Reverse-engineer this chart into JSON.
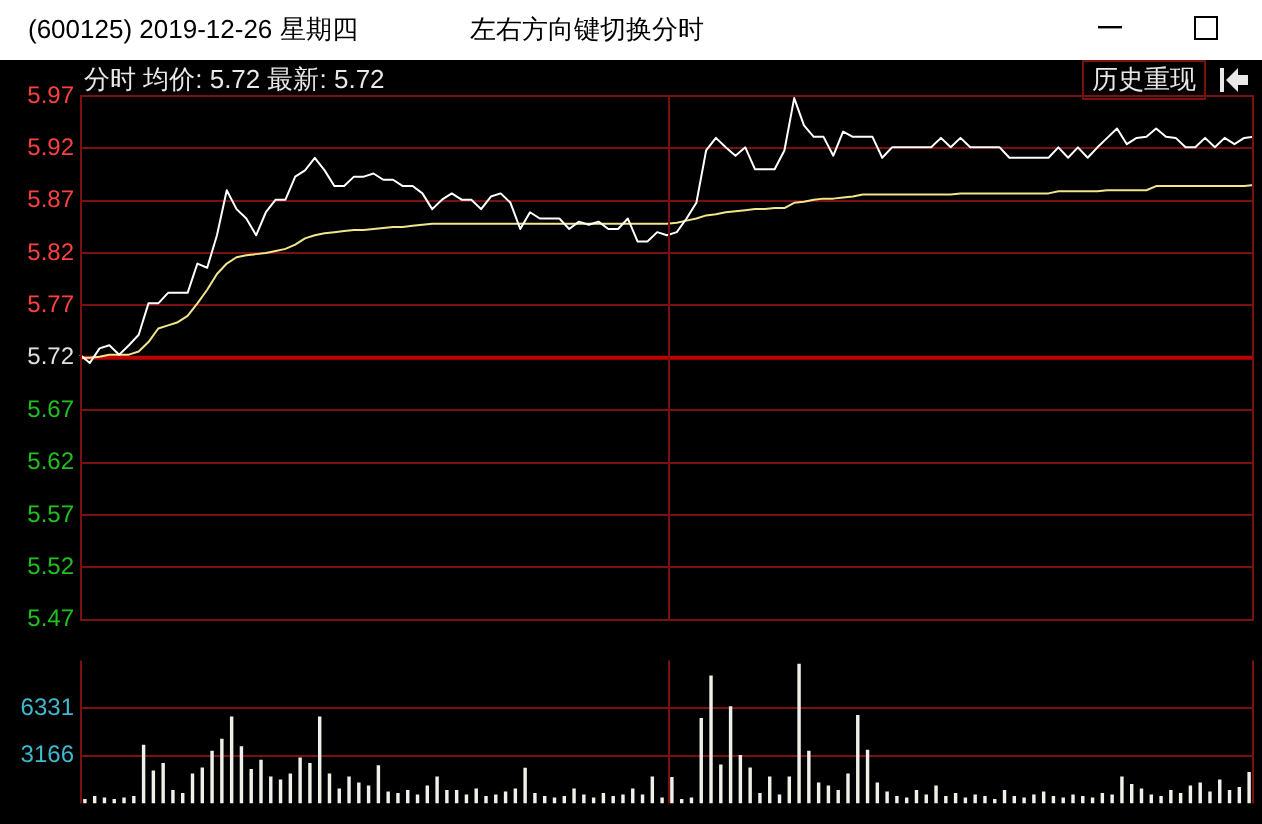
{
  "chart_data": [
    {
      "type": "line",
      "title": "(600125) 2019-12-26 星期四",
      "subtitle": "左右方向键切换分时",
      "annotations": [
        "分时 均价: 5.72 最新: 5.72",
        "历史重现"
      ],
      "categories": [
        null,
        null,
        null,
        null,
        null,
        null,
        null,
        null,
        null,
        null,
        null,
        null,
        null,
        null,
        null,
        null,
        null,
        null,
        null,
        null,
        null,
        null,
        null,
        null,
        null,
        null,
        null,
        null,
        null,
        null,
        null,
        null,
        null,
        null,
        null,
        null,
        null,
        null,
        null,
        null,
        null,
        null,
        null,
        null,
        null,
        null,
        null,
        null,
        null,
        null,
        null,
        null,
        null,
        null,
        null,
        null,
        null,
        null,
        null,
        null,
        null,
        null,
        null,
        null,
        null,
        null,
        null,
        null,
        null,
        null,
        null,
        null,
        null,
        null,
        null,
        null,
        null,
        null,
        null,
        null,
        null,
        null,
        null,
        null,
        null,
        null,
        null,
        null,
        null,
        null,
        null,
        null,
        null,
        null,
        null,
        null,
        null,
        null,
        null,
        null,
        null,
        null,
        null,
        null,
        null,
        null,
        null,
        null,
        null,
        null,
        null,
        null,
        null,
        null,
        null,
        null,
        null,
        null,
        null,
        null,
        null
      ],
      "series": [
        {
          "color": "#ffffff",
          "values": [
            5.723,
            5.715,
            5.729,
            5.732,
            5.723,
            5.732,
            5.742,
            5.772,
            5.772,
            5.782,
            5.782,
            5.782,
            5.81,
            5.806,
            5.837,
            5.88,
            5.862,
            5.853,
            5.837,
            5.859,
            5.871,
            5.871,
            5.893,
            5.899,
            5.911,
            5.899,
            5.884,
            5.884,
            5.893,
            5.893,
            5.896,
            5.89,
            5.89,
            5.884,
            5.884,
            5.877,
            5.862,
            5.871,
            5.877,
            5.871,
            5.871,
            5.862,
            5.874,
            5.877,
            5.868,
            5.843,
            5.859,
            5.853,
            5.853,
            5.853,
            5.843,
            5.85,
            5.847,
            5.85,
            5.843,
            5.843,
            5.853,
            5.831,
            5.831,
            5.84,
            5.837,
            5.84,
            5.853,
            5.868,
            5.918,
            5.93,
            5.921,
            5.913,
            5.921,
            5.9,
            5.9,
            5.9,
            5.918,
            5.968,
            5.942,
            5.931,
            5.931,
            5.913,
            5.936,
            5.931,
            5.931,
            5.931,
            5.911,
            5.921,
            5.921,
            5.921,
            5.921,
            5.921,
            5.93,
            5.921,
            5.93,
            5.921,
            5.921,
            5.921,
            5.921,
            5.911,
            5.911,
            5.911,
            5.911,
            5.911,
            5.921,
            5.911,
            5.921,
            5.911,
            5.921,
            5.93,
            5.939,
            5.924,
            5.93,
            5.931,
            5.939,
            5.931,
            5.93,
            5.921,
            5.921,
            5.93,
            5.921,
            5.93,
            5.924,
            5.93,
            5.931
          ]
        },
        {
          "color": "#f0e68c",
          "values": [
            5.72,
            5.72,
            5.721,
            5.723,
            5.723,
            5.723,
            5.726,
            5.735,
            5.748,
            5.751,
            5.754,
            5.76,
            5.772,
            5.785,
            5.8,
            5.81,
            5.816,
            5.818,
            5.819,
            5.82,
            5.822,
            5.824,
            5.828,
            5.834,
            5.837,
            5.839,
            5.84,
            5.841,
            5.842,
            5.842,
            5.843,
            5.844,
            5.845,
            5.845,
            5.846,
            5.847,
            5.848,
            5.848,
            5.848,
            5.848,
            5.848,
            5.848,
            5.848,
            5.848,
            5.848,
            5.848,
            5.848,
            5.848,
            5.848,
            5.848,
            5.848,
            5.848,
            5.848,
            5.848,
            5.848,
            5.848,
            5.848,
            5.848,
            5.848,
            5.848,
            5.848,
            5.849,
            5.851,
            5.853,
            5.856,
            5.857,
            5.859,
            5.86,
            5.861,
            5.862,
            5.862,
            5.863,
            5.863,
            5.868,
            5.869,
            5.871,
            5.872,
            5.872,
            5.873,
            5.874,
            5.876,
            5.876,
            5.876,
            5.876,
            5.876,
            5.876,
            5.876,
            5.876,
            5.876,
            5.876,
            5.877,
            5.877,
            5.877,
            5.877,
            5.877,
            5.877,
            5.877,
            5.877,
            5.877,
            5.877,
            5.879,
            5.879,
            5.879,
            5.879,
            5.879,
            5.88,
            5.88,
            5.88,
            5.88,
            5.88,
            5.884,
            5.884,
            5.884,
            5.884,
            5.884,
            5.884,
            5.884,
            5.884,
            5.884,
            5.884,
            5.885
          ]
        }
      ],
      "ylim": [
        5.47,
        5.97
      ],
      "yticks": [
        5.47,
        5.52,
        5.57,
        5.62,
        5.67,
        5.72,
        5.77,
        5.82,
        5.87,
        5.92,
        5.97
      ],
      "ref_lines": [
        {
          "axis": "y",
          "value": 5.72,
          "color": "#c00000"
        }
      ],
      "grid": "y",
      "legend": false,
      "marker": "none",
      "line_style": "solid",
      "tick_labels": "y"
    },
    {
      "type": "bar",
      "categories": [
        null,
        null,
        null,
        null,
        null,
        null,
        null,
        null,
        null,
        null,
        null,
        null,
        null,
        null,
        null,
        null,
        null,
        null,
        null,
        null,
        null,
        null,
        null,
        null,
        null,
        null,
        null,
        null,
        null,
        null,
        null,
        null,
        null,
        null,
        null,
        null,
        null,
        null,
        null,
        null,
        null,
        null,
        null,
        null,
        null,
        null,
        null,
        null,
        null,
        null,
        null,
        null,
        null,
        null,
        null,
        null,
        null,
        null,
        null,
        null,
        null,
        null,
        null,
        null,
        null,
        null,
        null,
        null,
        null,
        null,
        null,
        null,
        null,
        null,
        null,
        null,
        null,
        null,
        null,
        null,
        null,
        null,
        null,
        null,
        null,
        null,
        null,
        null,
        null,
        null,
        null,
        null,
        null,
        null,
        null,
        null,
        null,
        null,
        null,
        null,
        null,
        null,
        null,
        null,
        null,
        null,
        null,
        null,
        null,
        null,
        null,
        null,
        null,
        null,
        null,
        null,
        null,
        null,
        null,
        null
      ],
      "values": [
        300,
        500,
        400,
        300,
        400,
        500,
        3900,
        2200,
        2700,
        900,
        700,
        2000,
        2400,
        3500,
        4300,
        5780,
        3800,
        2300,
        2900,
        1800,
        1600,
        2000,
        3060,
        2700,
        5780,
        2000,
        1000,
        1800,
        1400,
        1200,
        2550,
        800,
        700,
        900,
        600,
        1200,
        1800,
        900,
        900,
        600,
        1000,
        500,
        600,
        800,
        1000,
        2380,
        700,
        500,
        400,
        500,
        1000,
        600,
        400,
        700,
        500,
        600,
        1000,
        600,
        1800,
        400,
        1770,
        300,
        400,
        5680,
        8500,
        2600,
        6460,
        3230,
        2400,
        700,
        1800,
        600,
        1800,
        9280,
        3500,
        1400,
        1200,
        900,
        2000,
        5880,
        3570,
        1400,
        800,
        500,
        400,
        900,
        600,
        1200,
        500,
        700,
        400,
        600,
        500,
        300,
        900,
        500,
        400,
        600,
        800,
        500,
        400,
        600,
        500,
        400,
        700,
        600,
        1800,
        1300,
        1000,
        600,
        500,
        900,
        700,
        1200,
        1400,
        800,
        1600,
        900,
        1100,
        2100
      ],
      "color": "#f0f0e8",
      "ylim": [
        0,
        9497
      ],
      "yticks": [
        3166,
        6331
      ],
      "grid": "y",
      "legend": false,
      "tick_labels": "y"
    }
  ]
}
